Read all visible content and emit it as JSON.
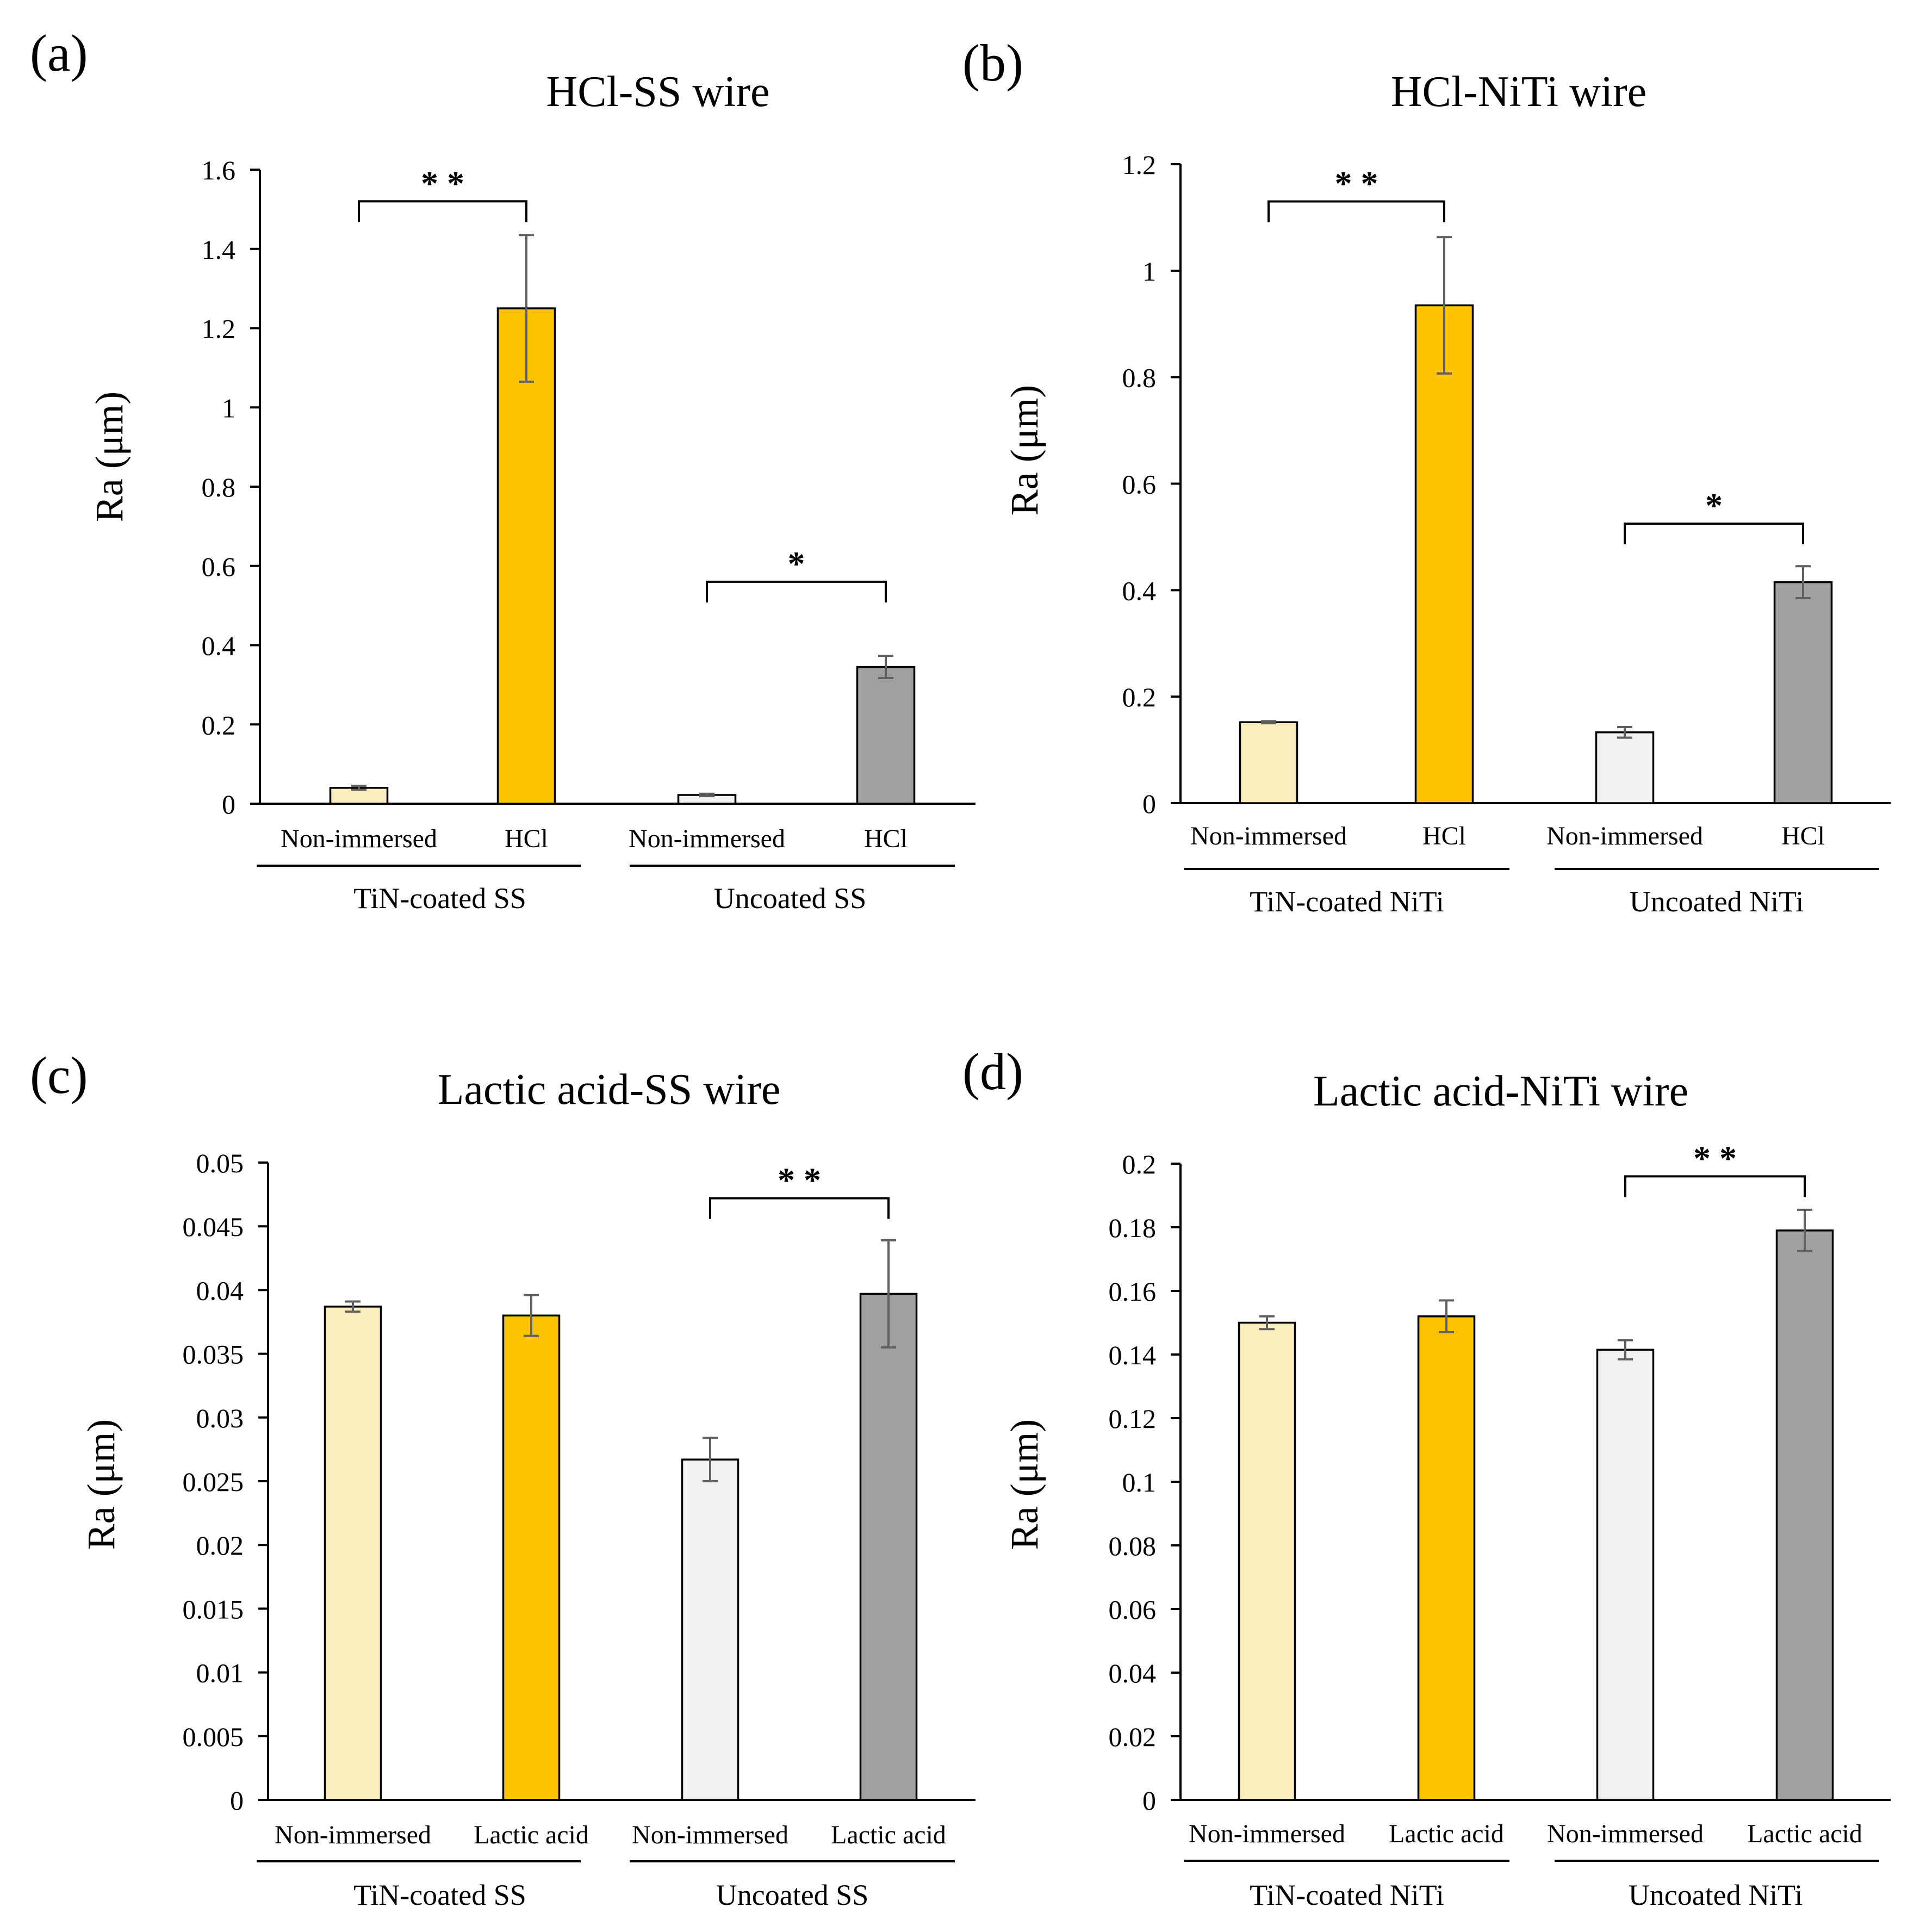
{
  "colors": {
    "tin_light": "#FCEEBC",
    "tin_dark": "#FBC300",
    "uncoated_light": "#F1F1F1",
    "uncoated_dark": "#A0A0A0",
    "bar_outline": "#000000",
    "error_bar": "#606060",
    "axis": "#000000"
  },
  "chart_data": [
    {
      "type": "bar",
      "panel_label": "(a)",
      "title": "HCl-SS wire",
      "ylabel": "Ra (μm)",
      "ylim": [
        0,
        1.6
      ],
      "yticks": [
        0,
        0.2,
        0.4,
        0.6,
        0.8,
        1,
        1.2,
        1.4,
        1.6
      ],
      "ytick_labels": [
        "0",
        "0.2",
        "0.4",
        "0.6",
        "0.8",
        "1",
        "1.2",
        "1.4",
        "1.6"
      ],
      "categories": [
        "Non-immersed",
        "HCl",
        "Non-immersed",
        "HCl"
      ],
      "values": [
        0.04,
        1.25,
        0.022,
        0.345
      ],
      "errors": [
        0.005,
        0.185,
        0.003,
        0.028
      ],
      "group_labels": [
        "TiN-coated SS",
        "Uncoated SS"
      ],
      "significance": [
        {
          "from": 0,
          "to": 1,
          "label": "* *",
          "level": 1.52
        },
        {
          "from": 2,
          "to": 3,
          "label": "*",
          "level": 0.56
        }
      ]
    },
    {
      "type": "bar",
      "panel_label": "(b)",
      "title": "HCl-NiTi wire",
      "ylabel": "Ra (μm)",
      "ylim": [
        0,
        1.2
      ],
      "yticks": [
        0,
        0.2,
        0.4,
        0.6,
        0.8,
        1,
        1.2
      ],
      "ytick_labels": [
        "0",
        "0.2",
        "0.4",
        "0.6",
        "0.8",
        "1",
        "1.2"
      ],
      "categories": [
        "Non-immersed",
        "HCl",
        "Non-immersed",
        "HCl"
      ],
      "values": [
        0.152,
        0.935,
        0.133,
        0.415
      ],
      "errors": [
        0.002,
        0.128,
        0.01,
        0.03
      ],
      "group_labels": [
        "TiN-coated NiTi",
        "Uncoated NiTi"
      ],
      "significance": [
        {
          "from": 0,
          "to": 1,
          "label": "* *",
          "level": 1.13
        },
        {
          "from": 2,
          "to": 3,
          "label": "*",
          "level": 0.525
        }
      ]
    },
    {
      "type": "bar",
      "panel_label": "(c)",
      "title": "Lactic acid-SS wire",
      "ylabel": "Ra (μm)",
      "ylim": [
        0,
        0.05
      ],
      "yticks": [
        0,
        0.005,
        0.01,
        0.015,
        0.02,
        0.025,
        0.03,
        0.035,
        0.04,
        0.045,
        0.05
      ],
      "ytick_labels": [
        "0",
        "0.005",
        "0.01",
        "0.015",
        "0.02",
        "0.025",
        "0.03",
        "0.035",
        "0.04",
        "0.045",
        "0.05"
      ],
      "categories": [
        "Non-immersed",
        "Lactic acid",
        "Non-immersed",
        "Lactic acid"
      ],
      "values": [
        0.0387,
        0.038,
        0.0267,
        0.0397
      ],
      "errors": [
        0.0004,
        0.0016,
        0.0017,
        0.0042
      ],
      "group_labels": [
        "TiN-coated SS",
        "Uncoated SS"
      ],
      "significance": [
        {
          "from": 2,
          "to": 3,
          "label": "* *",
          "level": 0.0472
        }
      ]
    },
    {
      "type": "bar",
      "panel_label": "(d)",
      "title": "Lactic acid-NiTi wire",
      "ylabel": "Ra (μm)",
      "ylim": [
        0,
        0.2
      ],
      "yticks": [
        0,
        0.02,
        0.04,
        0.06,
        0.08,
        0.1,
        0.12,
        0.14,
        0.16,
        0.18,
        0.2
      ],
      "ytick_labels": [
        "0",
        "0.02",
        "0.04",
        "0.06",
        "0.08",
        "0.1",
        "0.12",
        "0.14",
        "0.16",
        "0.18",
        "0.2"
      ],
      "categories": [
        "Non-immersed",
        "Lactic acid",
        "Non-immersed",
        "Lactic acid"
      ],
      "values": [
        0.15,
        0.152,
        0.1415,
        0.179
      ],
      "errors": [
        0.002,
        0.005,
        0.003,
        0.0065
      ],
      "group_labels": [
        "TiN-coated NiTi",
        "Uncoated NiTi"
      ],
      "significance": [
        {
          "from": 2,
          "to": 3,
          "label": "* *",
          "level": 0.196
        }
      ]
    }
  ]
}
